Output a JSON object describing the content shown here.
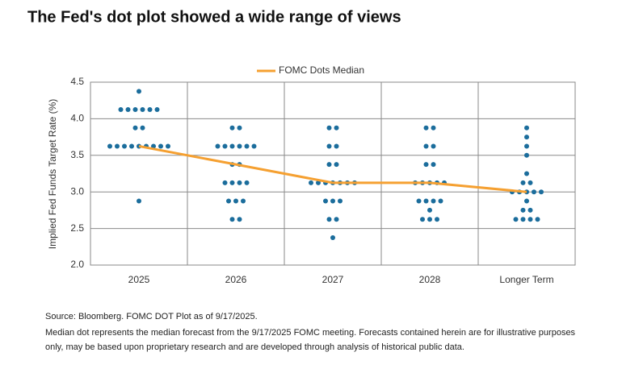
{
  "chart_data": {
    "type": "dot",
    "title": "The Fed's dot plot showed a wide range of views",
    "y_label": "Implied Fed Funds Target Rate (%)",
    "categories": [
      "2025",
      "2026",
      "2027",
      "2028",
      "Longer Term"
    ],
    "dot_color": "#1b6d9c",
    "dots": [
      [
        4.375,
        4.125,
        4.125,
        4.125,
        4.125,
        4.125,
        4.125,
        3.875,
        3.875,
        3.625,
        3.625,
        3.625,
        3.625,
        3.625,
        3.625,
        3.625,
        3.625,
        3.625,
        2.875
      ],
      [
        3.875,
        3.875,
        3.625,
        3.625,
        3.625,
        3.625,
        3.625,
        3.625,
        3.375,
        3.375,
        3.125,
        3.125,
        3.125,
        3.125,
        2.875,
        2.875,
        2.875,
        2.625,
        2.625
      ],
      [
        3.875,
        3.875,
        3.625,
        3.625,
        3.375,
        3.375,
        3.125,
        3.125,
        3.125,
        3.125,
        3.125,
        3.125,
        3.125,
        2.875,
        2.875,
        2.875,
        2.625,
        2.625,
        2.375
      ],
      [
        3.875,
        3.875,
        3.625,
        3.625,
        3.375,
        3.375,
        3.125,
        3.125,
        3.125,
        3.125,
        3.125,
        2.875,
        2.875,
        2.875,
        2.875,
        2.75,
        2.625,
        2.625,
        2.625
      ],
      [
        3.875,
        3.75,
        3.625,
        3.5,
        3.25,
        3.125,
        3.125,
        3.0,
        3.0,
        3.0,
        3.0,
        3.0,
        2.875,
        2.75,
        2.75,
        2.625,
        2.625,
        2.625,
        2.625
      ]
    ],
    "series": [
      {
        "name": "FOMC Dots Median",
        "color": "#f5a031",
        "values": [
          3.625,
          3.375,
          3.125,
          3.125,
          3.0
        ]
      }
    ],
    "ylim": [
      2.0,
      4.5
    ],
    "yticks": [
      {
        "value": 2.0,
        "label": "2.0"
      },
      {
        "value": 2.5,
        "label": "2.5"
      },
      {
        "value": 3.0,
        "label": "3.0"
      },
      {
        "value": 3.5,
        "label": "3.5"
      },
      {
        "value": 4.0,
        "label": "4.0"
      },
      {
        "value": 4.5,
        "label": "4.5"
      }
    ],
    "grid": true,
    "legend_position": "top",
    "source": "Source: Bloomberg. FOMC DOT Plot as of 9/17/2025.",
    "footnote": [
      "Median dot represents the median forecast from the 9/17/2025 FOMC meeting. Forecasts contained herein are for illustrative purposes",
      "only, may be based upon proprietary research and are developed through analysis of historical public data."
    ]
  }
}
